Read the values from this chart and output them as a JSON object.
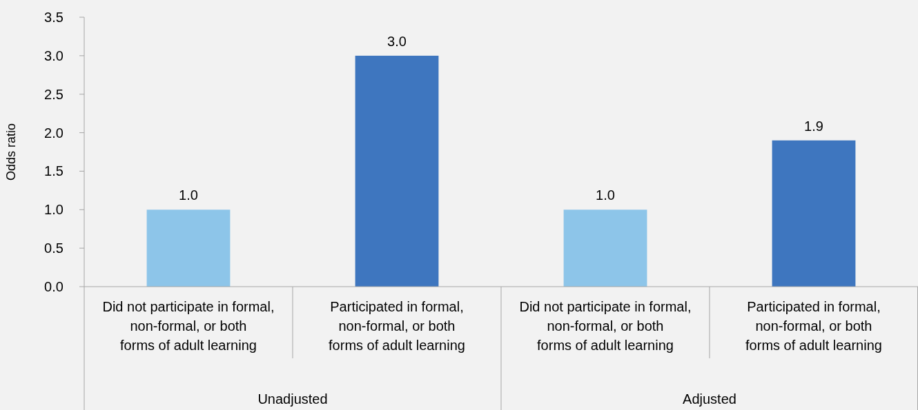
{
  "chart_data": {
    "type": "bar",
    "ylabel": "Odds ratio",
    "categories": [
      "Did not participate in formal,\nnon-formal, or both\nforms of adult learning",
      "Participated in formal,\nnon-formal, or both\nforms of adult learning",
      "Did not participate in formal,\nnon-formal, or both\nforms of adult learning",
      "Participated in formal,\nnon-formal, or both\nforms of adult learning"
    ],
    "values": [
      1.0,
      3.0,
      1.0,
      1.9
    ],
    "value_labels": [
      "1.0",
      "3.0",
      "1.0",
      "1.9"
    ],
    "colors": [
      "#8dc5e9",
      "#3e76bf",
      "#8dc5e9",
      "#3e76bf"
    ],
    "ylim": [
      0,
      3.5
    ],
    "yticks": [
      {
        "value": 0,
        "label": "0.0"
      },
      {
        "value": 0.5,
        "label": "0.5"
      },
      {
        "value": 1,
        "label": "1.0"
      },
      {
        "value": 1.5,
        "label": "1.5"
      },
      {
        "value": 2,
        "label": "2.0"
      },
      {
        "value": 2.5,
        "label": "2.5"
      },
      {
        "value": 3,
        "label": "3.0"
      },
      {
        "value": 3.5,
        "label": "3.5"
      }
    ],
    "annotations": [
      "Unadjusted",
      "Adjusted"
    ]
  }
}
